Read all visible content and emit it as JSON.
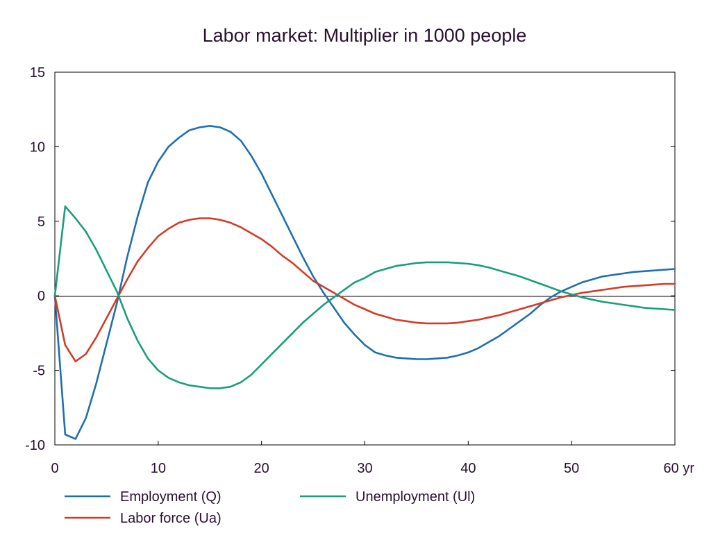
{
  "chart_data": {
    "type": "line",
    "title": "Labor market: Multiplier in 1000 people",
    "x_unit_label": "yr",
    "xlim": [
      0,
      60
    ],
    "ylim": [
      -10,
      15
    ],
    "x_ticks": [
      0,
      10,
      20,
      30,
      40,
      50,
      60
    ],
    "x_tick_labels": [
      "0",
      "10",
      "20",
      "30",
      "40",
      "50",
      "60 yr"
    ],
    "y_ticks": [
      15,
      10,
      5,
      0,
      -5,
      -10
    ],
    "y_tick_labels": [
      "15",
      "10",
      "5",
      "0",
      "-5",
      "-10"
    ],
    "grid": false,
    "zero_line": true,
    "legend_position": "bottom",
    "x": [
      0,
      1,
      2,
      3,
      4,
      5,
      6,
      7,
      8,
      9,
      10,
      11,
      12,
      13,
      14,
      15,
      16,
      17,
      18,
      19,
      20,
      21,
      22,
      23,
      24,
      25,
      26,
      27,
      28,
      29,
      30,
      31,
      32,
      33,
      34,
      35,
      36,
      37,
      38,
      39,
      40,
      41,
      42,
      43,
      44,
      45,
      46,
      47,
      48,
      49,
      50,
      51,
      52,
      53,
      54,
      55,
      56,
      57,
      58,
      59,
      60
    ],
    "series": [
      {
        "name": "Employment (Q)",
        "color": "#1f6fb0",
        "values": [
          0,
          -9.3,
          -9.6,
          -8.2,
          -5.9,
          -3.2,
          -0.5,
          2.6,
          5.3,
          7.6,
          9.0,
          10.0,
          10.6,
          11.1,
          11.3,
          11.4,
          11.3,
          11.0,
          10.4,
          9.4,
          8.2,
          6.8,
          5.4,
          4.0,
          2.6,
          1.3,
          0.2,
          -0.8,
          -1.8,
          -2.6,
          -3.3,
          -3.8,
          -4.0,
          -4.15,
          -4.2,
          -4.25,
          -4.25,
          -4.2,
          -4.15,
          -4.0,
          -3.8,
          -3.5,
          -3.1,
          -2.7,
          -2.2,
          -1.7,
          -1.2,
          -0.6,
          -0.1,
          0.3,
          0.6,
          0.9,
          1.1,
          1.3,
          1.4,
          1.5,
          1.6,
          1.65,
          1.7,
          1.75,
          1.8
        ]
      },
      {
        "name": "Labor force (Ua)",
        "color": "#d63a27",
        "values": [
          0,
          -3.3,
          -4.4,
          -3.9,
          -2.8,
          -1.5,
          -0.2,
          1.1,
          2.3,
          3.2,
          4.0,
          4.5,
          4.9,
          5.1,
          5.2,
          5.2,
          5.1,
          4.9,
          4.6,
          4.2,
          3.8,
          3.3,
          2.7,
          2.2,
          1.6,
          1.0,
          0.6,
          0.2,
          -0.2,
          -0.6,
          -0.9,
          -1.2,
          -1.4,
          -1.6,
          -1.7,
          -1.8,
          -1.85,
          -1.85,
          -1.85,
          -1.8,
          -1.7,
          -1.6,
          -1.45,
          -1.3,
          -1.1,
          -0.9,
          -0.7,
          -0.5,
          -0.3,
          -0.1,
          0.05,
          0.2,
          0.3,
          0.4,
          0.5,
          0.6,
          0.65,
          0.7,
          0.75,
          0.8,
          0.8
        ]
      },
      {
        "name": "Unemployment (Ul)",
        "color": "#199e7c",
        "values": [
          0,
          6.0,
          5.2,
          4.3,
          3.1,
          1.7,
          0.3,
          -1.5,
          -3.0,
          -4.2,
          -5.0,
          -5.5,
          -5.8,
          -6.0,
          -6.1,
          -6.2,
          -6.2,
          -6.1,
          -5.8,
          -5.3,
          -4.6,
          -3.9,
          -3.2,
          -2.5,
          -1.8,
          -1.2,
          -0.6,
          -0.1,
          0.4,
          0.9,
          1.2,
          1.6,
          1.8,
          2.0,
          2.1,
          2.2,
          2.25,
          2.25,
          2.25,
          2.2,
          2.15,
          2.05,
          1.9,
          1.7,
          1.5,
          1.3,
          1.05,
          0.8,
          0.55,
          0.3,
          0.1,
          -0.1,
          -0.25,
          -0.4,
          -0.5,
          -0.6,
          -0.7,
          -0.8,
          -0.85,
          -0.9,
          -0.95
        ]
      }
    ]
  }
}
